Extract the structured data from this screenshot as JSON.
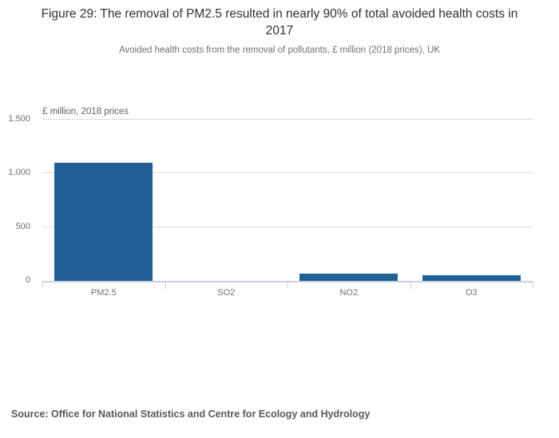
{
  "header": {
    "title": "Figure 29: The removal of PM2.5 resulted in nearly 90% of total avoided health costs in 2017",
    "subtitle": "Avoided health costs from the removal of pollutants, £ million (2018 prices), UK"
  },
  "chart_data": {
    "type": "bar",
    "categories": [
      "PM2.5",
      "SO2",
      "NO2",
      "O3"
    ],
    "values": [
      1100,
      2,
      65,
      55
    ],
    "title": "Figure 29: The removal of PM2.5 resulted in nearly 90% of total avoided health costs in 2017",
    "subtitle": "Avoided health costs from the removal of pollutants, £ million (2018 prices), UK",
    "xlabel": "",
    "ylabel": "£ million, 2018 prices",
    "ylim": [
      0,
      1500
    ],
    "yticks": [
      0,
      500,
      1000,
      1500
    ],
    "ytick_labels": [
      "0",
      "500",
      "1,000",
      "1,500"
    ],
    "grid": true,
    "legend": "none",
    "bar_color": "#206095"
  },
  "footer": {
    "source": "Source: Office for National Statistics and Centre for Ecology and Hydrology"
  },
  "colors": {
    "bar": "#206095",
    "gridline": "#d9d9d9",
    "axis_line": "#c6d0e4",
    "title_text": "#323132",
    "muted_text": "#707071",
    "source_text": "#595959"
  }
}
